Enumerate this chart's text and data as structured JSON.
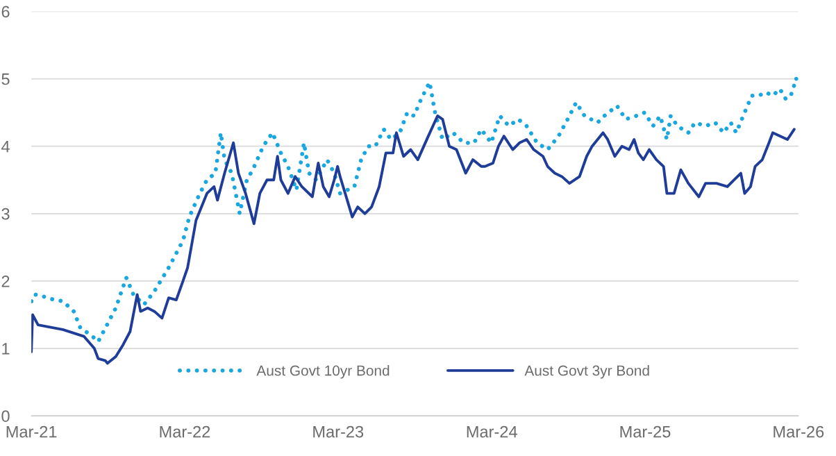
{
  "chart_data": {
    "type": "line",
    "xlim": [
      "2021-03-01",
      "2026-03-01"
    ],
    "xticks": [
      {
        "value": "2021-03-01",
        "label": "Mar-21"
      },
      {
        "value": "2022-03-01",
        "label": "Mar-22"
      },
      {
        "value": "2023-03-01",
        "label": "Mar-23"
      },
      {
        "value": "2024-03-01",
        "label": "Mar-24"
      },
      {
        "value": "2025-03-01",
        "label": "Mar-25"
      },
      {
        "value": "2026-03-01",
        "label": "Mar-26"
      }
    ],
    "ylim": [
      0,
      6
    ],
    "yticks": [
      0,
      1,
      2,
      3,
      4,
      5,
      6
    ],
    "grid": "y",
    "legend": "bottom",
    "series": [
      {
        "name": "Aust Govt 10yr Bond",
        "color": "#1aa7e0",
        "line_style": "dotted",
        "x": [
          "2021-03-01",
          "2021-03-09",
          "2021-03-25",
          "2021-04-20",
          "2021-05-15",
          "2021-06-10",
          "2021-06-26",
          "2021-07-21",
          "2021-08-07",
          "2021-08-24",
          "2021-09-18",
          "2021-10-13",
          "2021-10-30",
          "2021-11-24",
          "2021-12-19",
          "2022-01-22",
          "2022-02-25",
          "2022-03-12",
          "2022-04-06",
          "2022-04-23",
          "2022-05-13",
          "2022-05-26",
          "2022-06-04",
          "2022-06-21",
          "2022-07-10",
          "2022-07-27",
          "2022-08-10",
          "2022-09-04",
          "2022-09-26",
          "2022-10-16",
          "2022-11-02",
          "2022-11-22",
          "2022-12-10",
          "2022-12-22",
          "2023-01-08",
          "2023-02-03",
          "2023-02-20",
          "2023-03-06",
          "2023-03-23",
          "2023-04-09",
          "2023-04-25",
          "2023-05-12",
          "2023-05-29",
          "2023-06-18",
          "2023-07-05",
          "2023-07-26",
          "2023-08-13",
          "2023-08-29",
          "2023-09-15",
          "2023-10-05",
          "2023-10-18",
          "2023-11-05",
          "2023-11-30",
          "2023-12-25",
          "2024-01-19",
          "2024-02-05",
          "2024-02-29",
          "2024-03-20",
          "2024-04-11",
          "2024-05-03",
          "2024-05-23",
          "2024-06-17",
          "2024-07-12",
          "2024-08-07",
          "2024-09-02",
          "2024-09-18",
          "2024-10-08",
          "2024-11-08",
          "2024-11-24",
          "2024-12-24",
          "2025-01-14",
          "2025-02-08",
          "2025-02-28",
          "2025-03-20",
          "2025-04-06",
          "2025-04-22",
          "2025-05-01",
          "2025-05-17",
          "2025-06-12",
          "2025-06-28",
          "2025-07-23",
          "2025-08-15",
          "2025-09-04",
          "2025-09-21",
          "2025-10-04",
          "2025-10-24",
          "2025-11-10",
          "2025-11-27",
          "2025-12-13",
          "2025-12-30",
          "2026-01-16",
          "2026-01-30",
          "2026-02-11",
          "2026-02-24"
        ],
        "values": [
          1.7,
          1.8,
          1.78,
          1.73,
          1.7,
          1.55,
          1.3,
          1.2,
          1.1,
          1.3,
          1.6,
          2.05,
          1.8,
          1.65,
          1.85,
          2.2,
          2.6,
          2.95,
          3.3,
          3.5,
          3.6,
          4.2,
          3.8,
          3.6,
          3.0,
          3.5,
          3.65,
          4.0,
          4.2,
          3.9,
          3.7,
          3.35,
          4.05,
          3.6,
          3.5,
          3.8,
          3.6,
          3.3,
          3.35,
          3.4,
          3.8,
          4.0,
          4.0,
          4.25,
          4.1,
          4.2,
          4.5,
          4.45,
          4.7,
          4.95,
          4.5,
          4.1,
          4.2,
          4.05,
          4.05,
          4.25,
          4.05,
          4.45,
          4.3,
          4.4,
          4.3,
          4.05,
          3.95,
          4.15,
          4.45,
          4.65,
          4.45,
          4.35,
          4.45,
          4.6,
          4.4,
          4.45,
          4.5,
          4.3,
          4.45,
          4.1,
          4.45,
          4.3,
          4.2,
          4.35,
          4.3,
          4.35,
          4.2,
          4.35,
          4.2,
          4.5,
          4.75,
          4.75,
          4.8,
          4.75,
          4.85,
          4.7,
          4.75,
          5.0
        ]
      },
      {
        "name": "Aust Govt 3yr Bond",
        "color": "#1f3d98",
        "line_style": "solid",
        "x": [
          "2021-03-01",
          "2021-03-04",
          "2021-03-17",
          "2021-05-15",
          "2021-07-04",
          "2021-07-29",
          "2021-08-07",
          "2021-08-24",
          "2021-08-29",
          "2021-09-18",
          "2021-10-05",
          "2021-10-22",
          "2021-11-08",
          "2021-11-16",
          "2021-12-03",
          "2021-12-19",
          "2022-01-06",
          "2022-01-22",
          "2022-02-09",
          "2022-02-25",
          "2022-03-08",
          "2022-03-28",
          "2022-04-23",
          "2022-05-10",
          "2022-05-18",
          "2022-06-04",
          "2022-06-25",
          "2022-07-07",
          "2022-07-24",
          "2022-08-13",
          "2022-08-27",
          "2022-09-13",
          "2022-09-29",
          "2022-10-08",
          "2022-10-16",
          "2022-11-02",
          "2022-11-19",
          "2022-12-05",
          "2022-12-30",
          "2023-01-13",
          "2023-01-25",
          "2023-02-08",
          "2023-02-20",
          "2023-02-28",
          "2023-03-06",
          "2023-03-23",
          "2023-04-04",
          "2023-04-17",
          "2023-05-04",
          "2023-05-20",
          "2023-06-07",
          "2023-06-23",
          "2023-07-10",
          "2023-07-18",
          "2023-08-04",
          "2023-08-21",
          "2023-09-07",
          "2023-10-02",
          "2023-10-24",
          "2023-11-05",
          "2023-11-21",
          "2023-12-08",
          "2023-12-30",
          "2024-01-16",
          "2024-02-05",
          "2024-02-14",
          "2024-03-04",
          "2024-03-17",
          "2024-03-30",
          "2024-04-20",
          "2024-05-06",
          "2024-05-23",
          "2024-06-09",
          "2024-07-01",
          "2024-07-12",
          "2024-07-29",
          "2024-08-15",
          "2024-09-02",
          "2024-09-26",
          "2024-10-13",
          "2024-10-26",
          "2024-11-21",
          "2024-12-02",
          "2024-12-19",
          "2025-01-05",
          "2025-01-22",
          "2025-02-03",
          "2025-02-13",
          "2025-02-25",
          "2025-03-11",
          "2025-03-28",
          "2025-04-14",
          "2025-04-22",
          "2025-05-09",
          "2025-05-25",
          "2025-06-12",
          "2025-07-07",
          "2025-07-23",
          "2025-08-18",
          "2025-09-13",
          "2025-09-29",
          "2025-10-15",
          "2025-10-24",
          "2025-11-07",
          "2025-11-18",
          "2025-12-05",
          "2025-12-21",
          "2025-12-30",
          "2026-01-16",
          "2026-02-03",
          "2026-02-19"
        ],
        "values": [
          0.95,
          1.5,
          1.35,
          1.28,
          1.18,
          1.0,
          0.85,
          0.82,
          0.78,
          0.88,
          1.05,
          1.25,
          1.8,
          1.55,
          1.6,
          1.55,
          1.45,
          1.75,
          1.72,
          2.0,
          2.2,
          2.9,
          3.3,
          3.4,
          3.2,
          3.6,
          4.05,
          3.6,
          3.3,
          2.85,
          3.3,
          3.5,
          3.5,
          3.85,
          3.5,
          3.3,
          3.55,
          3.4,
          3.25,
          3.75,
          3.4,
          3.25,
          3.5,
          3.7,
          3.55,
          3.2,
          2.95,
          3.1,
          3.0,
          3.1,
          3.4,
          3.9,
          3.9,
          4.2,
          3.85,
          3.95,
          3.8,
          4.15,
          4.45,
          4.4,
          4.0,
          3.95,
          3.6,
          3.8,
          3.7,
          3.7,
          3.75,
          4.0,
          4.15,
          3.95,
          4.05,
          4.1,
          3.95,
          3.85,
          3.7,
          3.6,
          3.55,
          3.45,
          3.55,
          3.85,
          4.0,
          4.2,
          4.1,
          3.85,
          4.0,
          3.95,
          4.1,
          3.9,
          3.8,
          3.95,
          3.8,
          3.7,
          3.3,
          3.3,
          3.65,
          3.45,
          3.25,
          3.45,
          3.45,
          3.4,
          3.5,
          3.6,
          3.3,
          3.4,
          3.7,
          3.8,
          4.05,
          4.2,
          4.15,
          4.1,
          4.25
        ]
      }
    ]
  }
}
